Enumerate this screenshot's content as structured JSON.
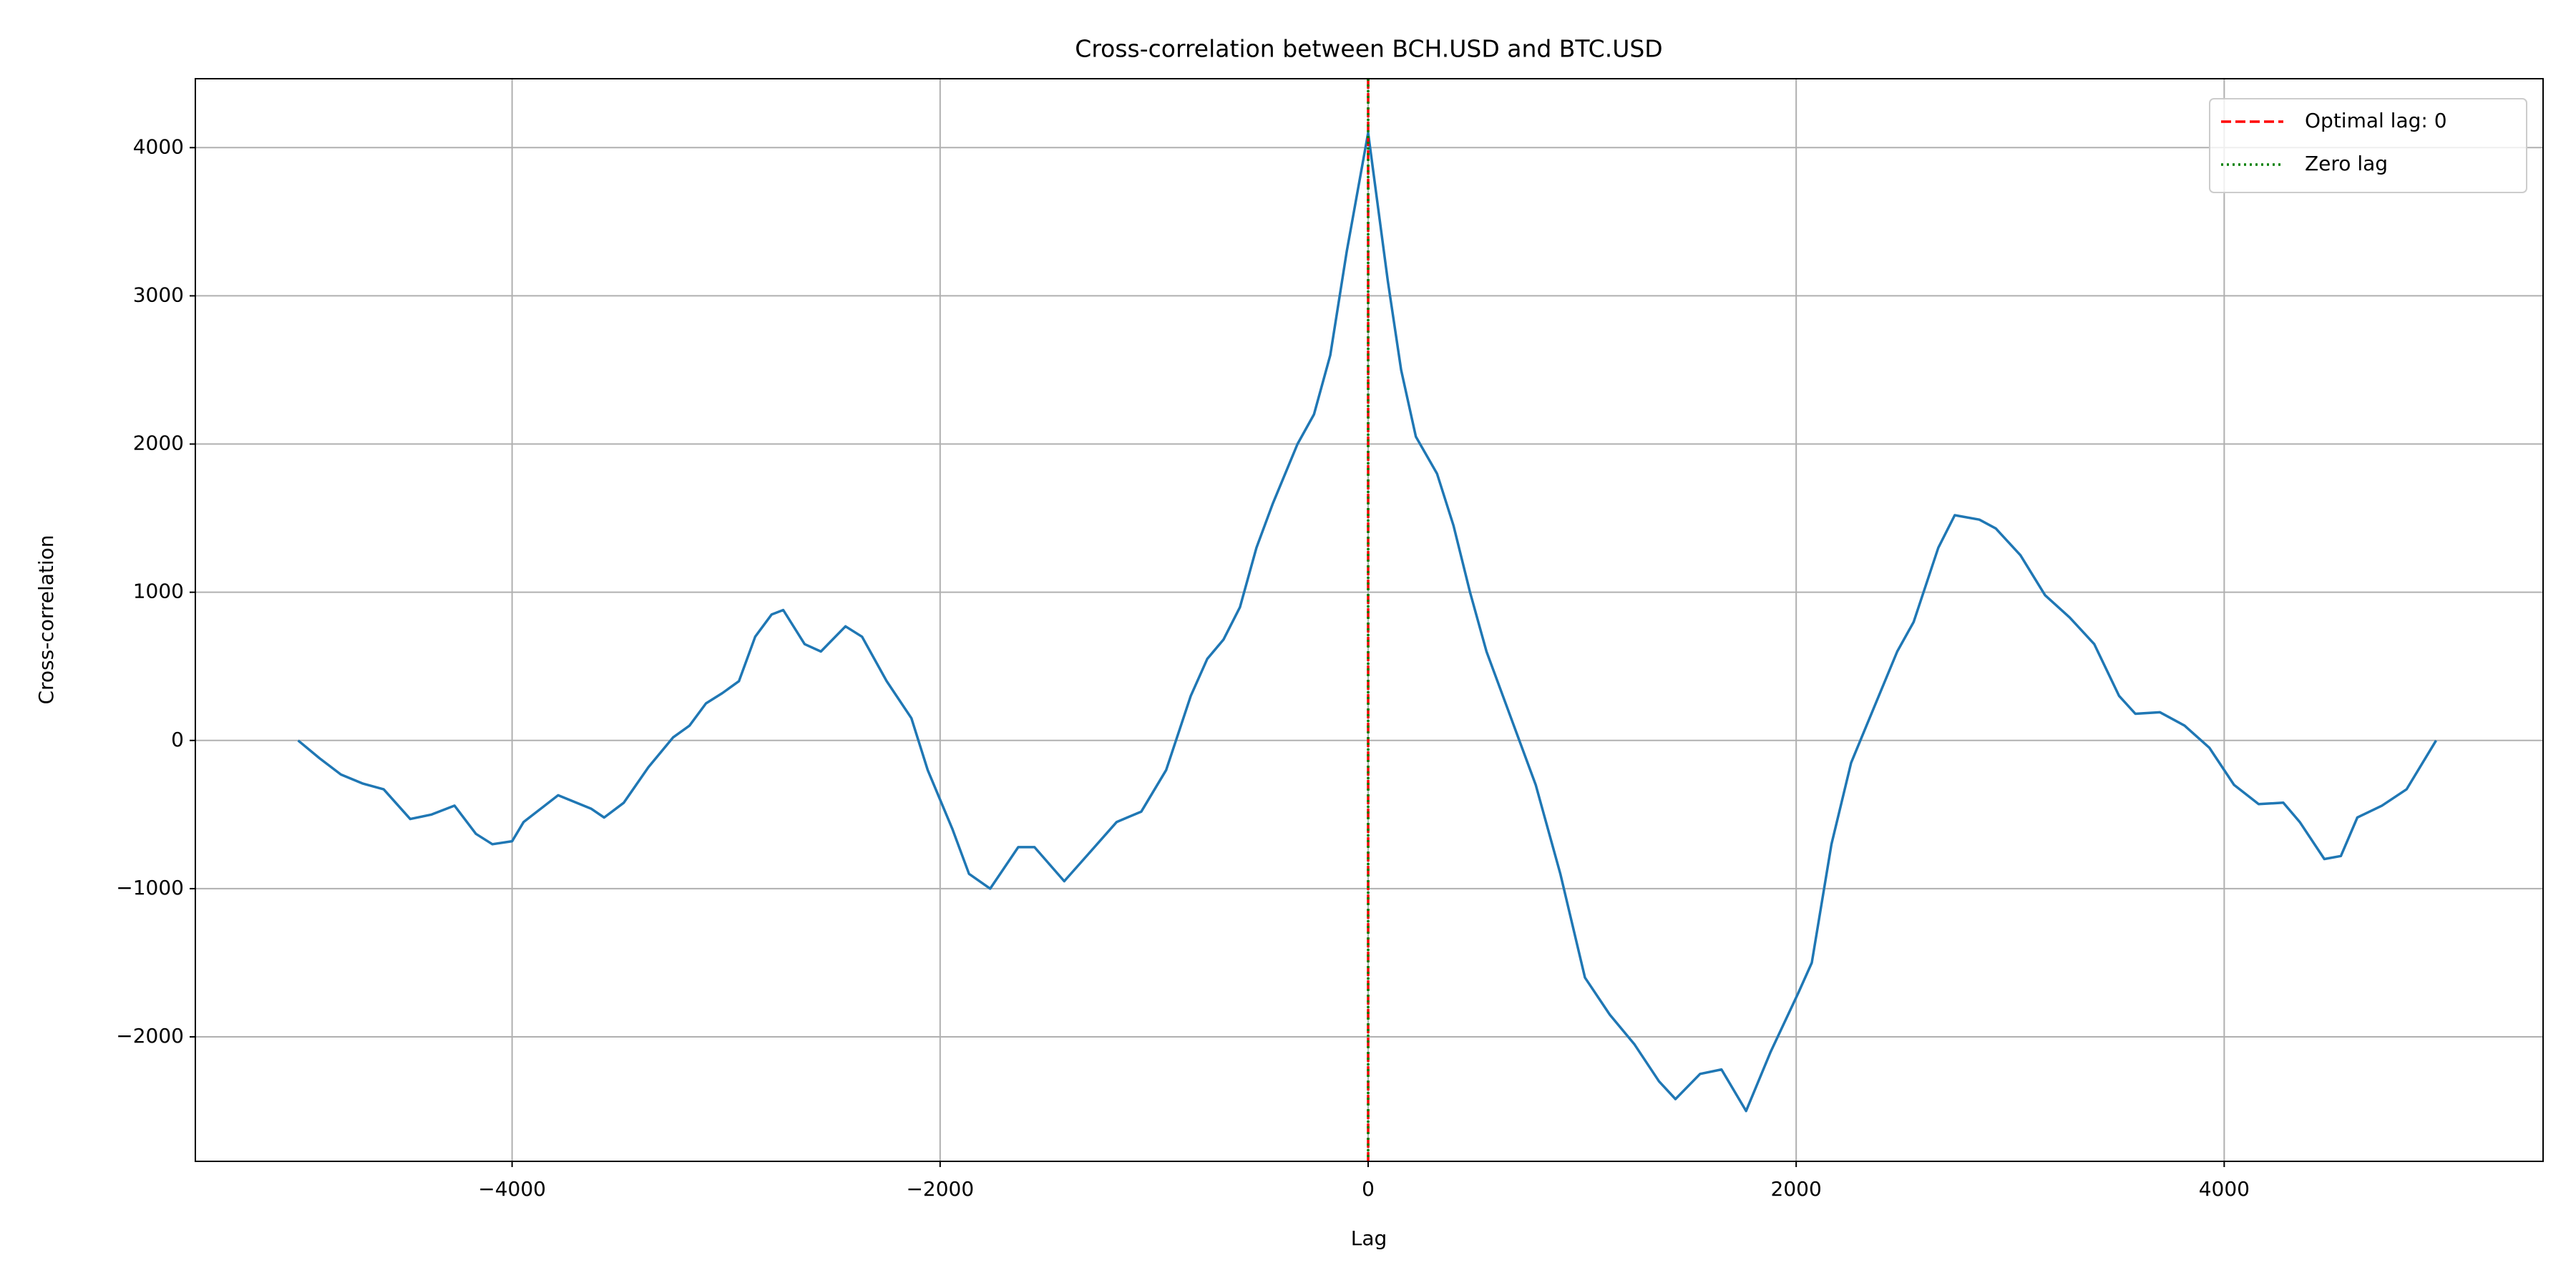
{
  "chart_data": {
    "type": "line",
    "title": "Cross-correlation between BCH.USD and BTC.USD",
    "xlabel": "Lag",
    "ylabel": "Cross-correlation",
    "xlim": [
      -5480,
      5490
    ],
    "ylim": [
      -2840,
      4465
    ],
    "xticks": [
      {
        "value": -4000,
        "label": "−4000"
      },
      {
        "value": -2000,
        "label": "−2000"
      },
      0,
      2000,
      4000
    ],
    "yticks": [
      {
        "value": -2000,
        "label": "−2000"
      },
      {
        "value": -1000,
        "label": "−1000"
      },
      0,
      1000,
      2000,
      3000,
      4000
    ],
    "grid": true,
    "legend": "upper right",
    "series": [
      {
        "name": null,
        "color": "#1f77b4",
        "x": [
          -5000,
          -4900,
          -4800,
          -4700,
          -4600,
          -4476,
          -4376,
          -4269,
          -4169,
          -4092,
          -4000,
          -3946,
          -3785,
          -3631,
          -3570,
          -3478,
          -3363,
          -3248,
          -3171,
          -3094,
          -3017,
          -2940,
          -2864,
          -2787,
          -2733,
          -2633,
          -2557,
          -2442,
          -2365,
          -2250,
          -2134,
          -2058,
          -1942,
          -1865,
          -1766,
          -1635,
          -1559,
          -1420,
          -1328,
          -1175,
          -1060,
          -944,
          -829,
          -752,
          -676,
          -599,
          -522,
          -445,
          -330,
          -253,
          -177,
          -100,
          0,
          92,
          154,
          223,
          322,
          399,
          476,
          553,
          668,
          783,
          898,
          1013,
          1129,
          1244,
          1359,
          1436,
          1551,
          1651,
          1766,
          1881,
          2011,
          2073,
          2165,
          2257,
          2357,
          2472,
          2549,
          2664,
          2741,
          2856,
          2933,
          3048,
          3163,
          3278,
          3393,
          3509,
          3585,
          3700,
          3815,
          3931,
          4046,
          4161,
          4276,
          4353,
          4468,
          4545,
          4622,
          4737,
          4852,
          4990
        ],
        "values": [
          0,
          -120,
          -230,
          -290,
          -330,
          -530,
          -500,
          -440,
          -630,
          -700,
          -680,
          -550,
          -370,
          -460,
          -520,
          -420,
          -180,
          20,
          100,
          250,
          320,
          400,
          700,
          850,
          880,
          650,
          600,
          770,
          700,
          400,
          150,
          -200,
          -600,
          -900,
          -1000,
          -720,
          -720,
          -950,
          -800,
          -550,
          -480,
          -200,
          300,
          550,
          680,
          900,
          1300,
          1600,
          2000,
          2200,
          2600,
          3300,
          4100,
          3100,
          2500,
          2050,
          1800,
          1450,
          1000,
          600,
          150,
          -300,
          -900,
          -1600,
          -1850,
          -2050,
          -2300,
          -2420,
          -2250,
          -2220,
          -2500,
          -2100,
          -1700,
          -1500,
          -700,
          -150,
          200,
          600,
          800,
          1300,
          1520,
          1490,
          1430,
          1250,
          980,
          830,
          650,
          300,
          180,
          190,
          100,
          -50,
          -300,
          -430,
          -420,
          -550,
          -800,
          -780,
          -520,
          -440,
          -330,
          0
        ]
      }
    ],
    "vlines": [
      {
        "name": "Optimal lag: 0",
        "x": 0,
        "color": "#ff0000",
        "dash": "dashed"
      },
      {
        "name": "Zero lag",
        "x": 0,
        "color": "#008000",
        "dash": "dotted"
      }
    ]
  }
}
